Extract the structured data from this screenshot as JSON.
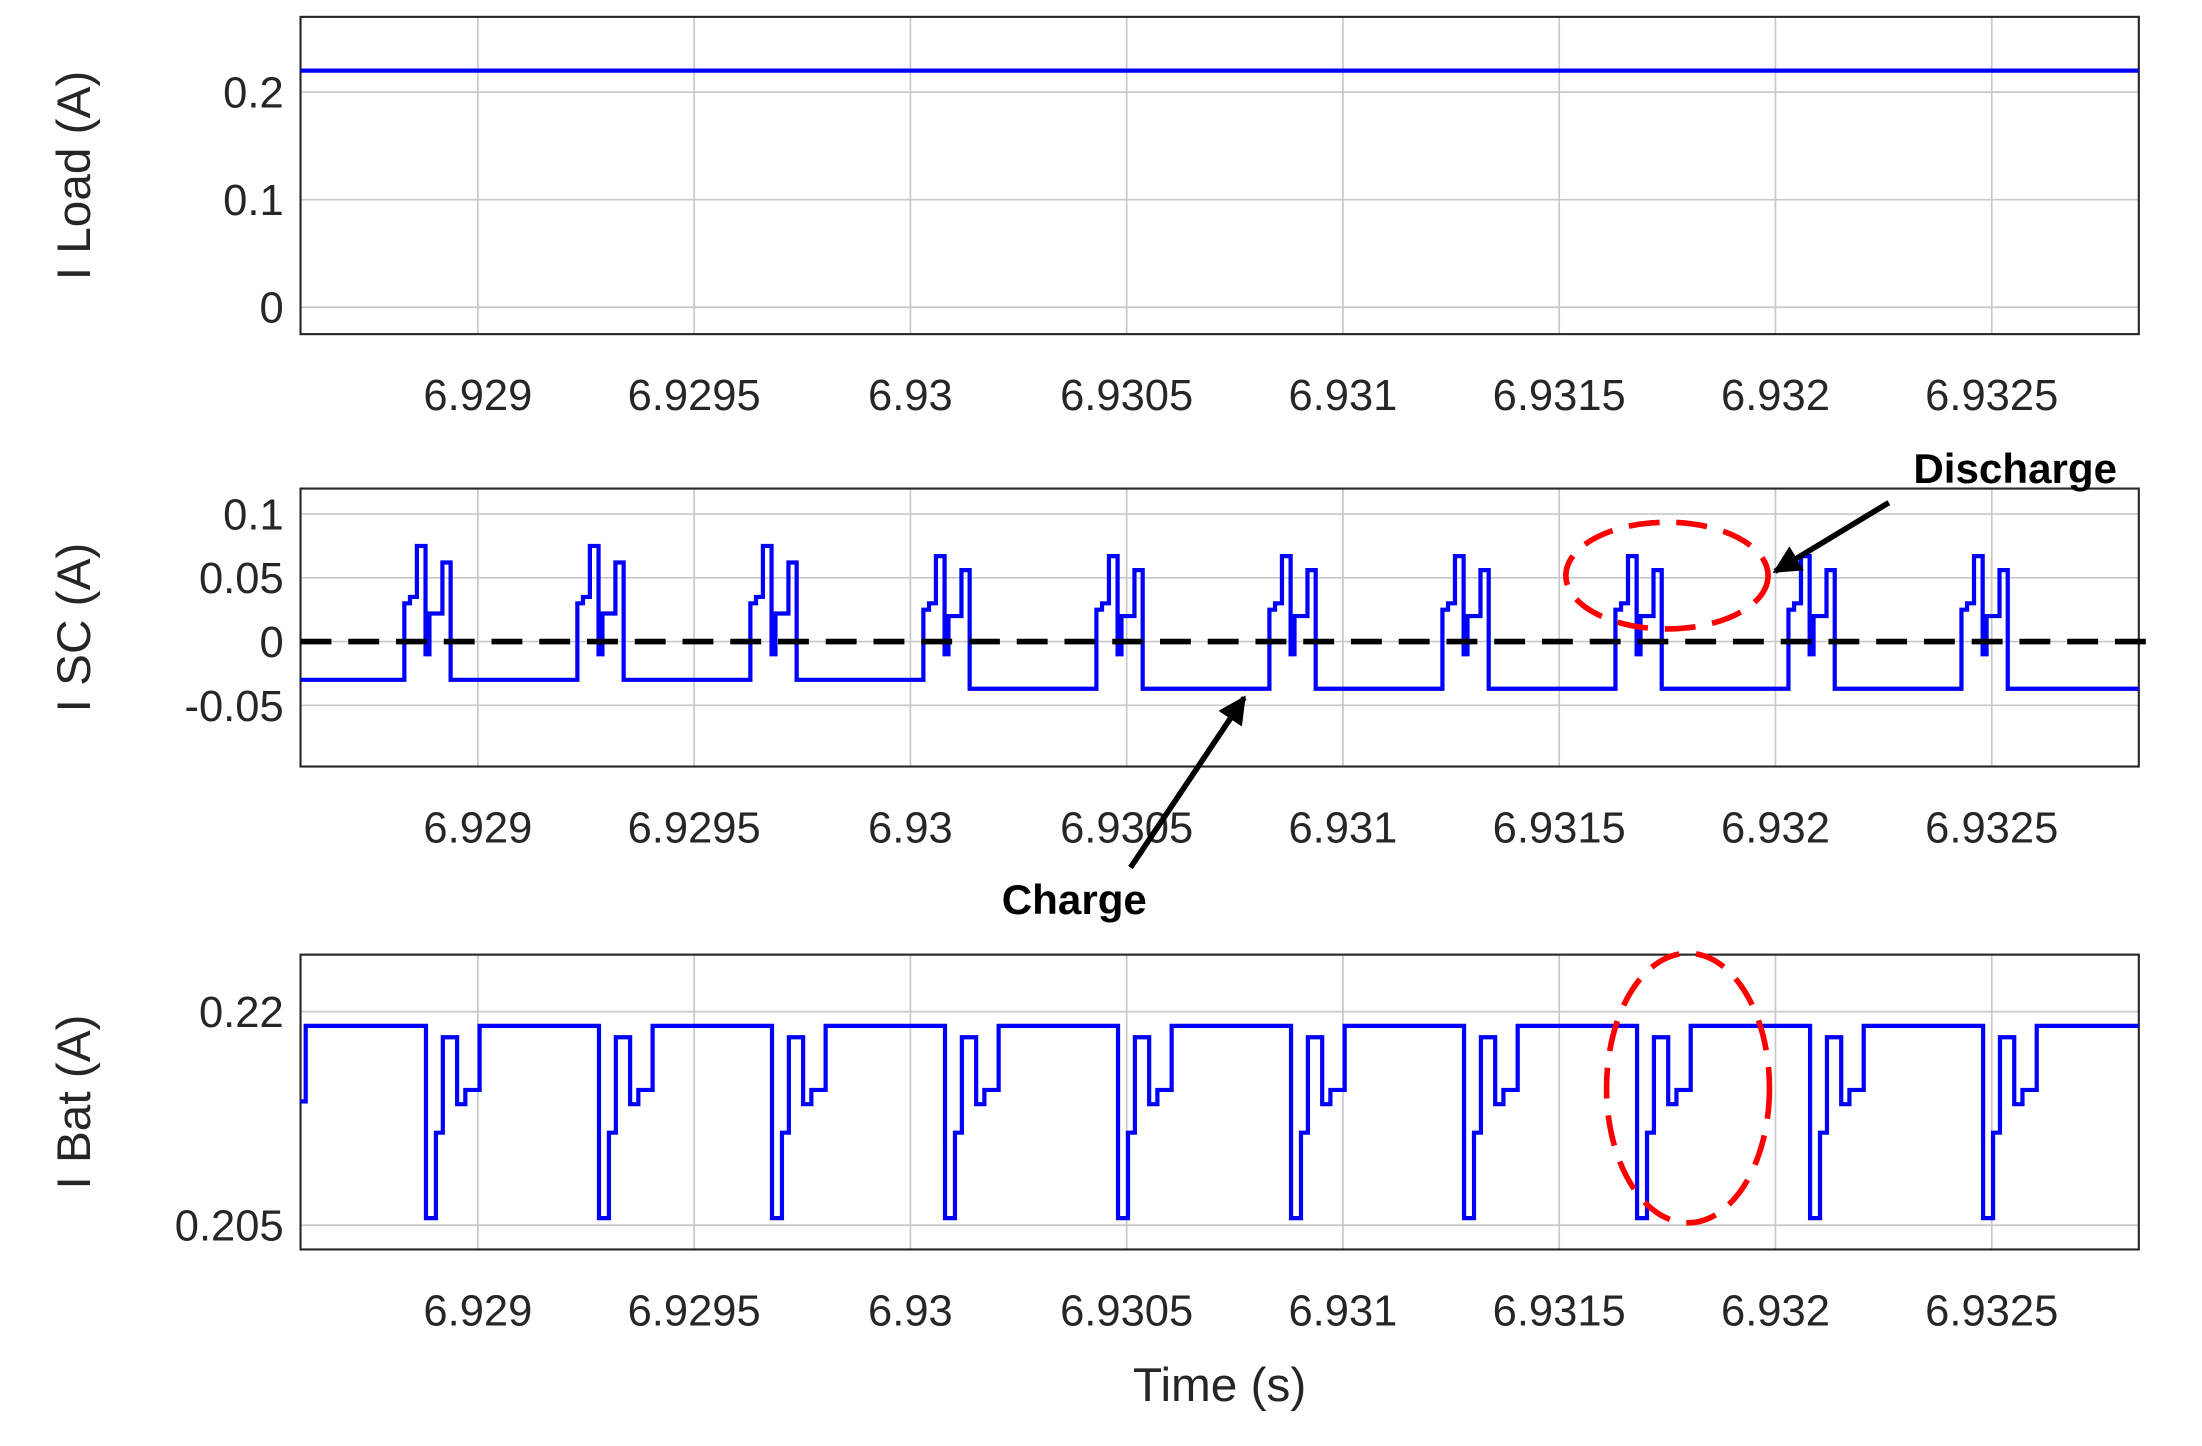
{
  "chart_data": [
    {
      "type": "line",
      "ylabel": "I Load (A)",
      "color": "#0000ff",
      "grid": true,
      "drawstyle": "steps-post",
      "xlim": [
        6.92859,
        6.93284
      ],
      "xticks": [
        6.929,
        6.9295,
        6.93,
        6.9305,
        6.931,
        6.9315,
        6.932,
        6.9325
      ],
      "ylim": [
        -0.025,
        0.27
      ],
      "yticks": [
        0,
        0.1,
        0.2
      ],
      "x": [
        6.92859,
        6.93284
      ],
      "values": [
        0.22,
        0.22
      ]
    },
    {
      "type": "line",
      "ylabel": "I SC (A)",
      "color": "#0000ff",
      "grid": true,
      "drawstyle": "steps-post",
      "xlim": [
        6.92859,
        6.93284
      ],
      "xticks": [
        6.929,
        6.9295,
        6.93,
        6.9305,
        6.931,
        6.9315,
        6.932,
        6.9325
      ],
      "ylim": [
        -0.098,
        0.12
      ],
      "yticks": [
        -0.05,
        0,
        0.05,
        0.1
      ],
      "reference_line": {
        "y": 0,
        "color": "#000000",
        "dashed": true
      },
      "annotations": [
        {
          "text": "Discharge"
        },
        {
          "text": "Charge"
        }
      ],
      "x": [
        6.92859,
        6.92883,
        6.928843,
        6.928859,
        6.928879,
        6.928888,
        6.928918,
        6.928937,
        6.92923,
        6.929243,
        6.929259,
        6.929279,
        6.929288,
        6.929318,
        6.929337,
        6.92963,
        6.929643,
        6.929659,
        6.929679,
        6.929688,
        6.929718,
        6.929737,
        6.93003,
        6.930043,
        6.930059,
        6.930079,
        6.930088,
        6.930118,
        6.930137,
        6.93043,
        6.930443,
        6.930459,
        6.930479,
        6.930488,
        6.930518,
        6.930537,
        6.93083,
        6.930843,
        6.930859,
        6.930879,
        6.930888,
        6.930918,
        6.930937,
        6.93123,
        6.931243,
        6.931259,
        6.931279,
        6.931288,
        6.931318,
        6.931337,
        6.93163,
        6.931643,
        6.931659,
        6.931679,
        6.931688,
        6.931718,
        6.931737,
        6.93203,
        6.932043,
        6.932059,
        6.932079,
        6.932088,
        6.932118,
        6.932137,
        6.93243,
        6.932443,
        6.932459,
        6.932479,
        6.932488,
        6.932518,
        6.932537,
        6.93284
      ],
      "values": [
        -0.03,
        0.03,
        0.035,
        0.075,
        -0.01,
        0.022,
        0.062,
        -0.03,
        0.03,
        0.035,
        0.075,
        -0.01,
        0.022,
        0.062,
        -0.03,
        0.03,
        0.035,
        0.075,
        -0.01,
        0.022,
        0.062,
        -0.03,
        0.025,
        0.03,
        0.067,
        -0.01,
        0.02,
        0.056,
        -0.037,
        0.025,
        0.03,
        0.067,
        -0.01,
        0.02,
        0.056,
        -0.037,
        0.025,
        0.03,
        0.067,
        -0.01,
        0.02,
        0.056,
        -0.037,
        0.025,
        0.03,
        0.067,
        -0.01,
        0.02,
        0.056,
        -0.037,
        0.025,
        0.03,
        0.067,
        -0.01,
        0.02,
        0.056,
        -0.037,
        0.025,
        0.03,
        0.067,
        -0.01,
        0.02,
        0.056,
        -0.037,
        0.025,
        0.03,
        0.067,
        -0.01,
        0.02,
        0.056,
        -0.037,
        -0.037
      ]
    },
    {
      "type": "line",
      "ylabel": "I Bat (A)",
      "xlabel": "Time (s)",
      "color": "#0000ff",
      "grid": true,
      "drawstyle": "steps-post",
      "xlim": [
        6.92859,
        6.93284
      ],
      "xticks": [
        6.929,
        6.9295,
        6.93,
        6.9305,
        6.931,
        6.9315,
        6.932,
        6.9325
      ],
      "ylim": [
        0.2033,
        0.224
      ],
      "yticks": [
        0.205,
        0.22
      ],
      "x": [
        6.92859,
        6.928602,
        6.92888,
        6.928903,
        6.928919,
        6.928952,
        6.928971,
        6.929004,
        6.92928,
        6.929303,
        6.929319,
        6.929352,
        6.929371,
        6.929404,
        6.92968,
        6.929703,
        6.929719,
        6.929752,
        6.929771,
        6.929804,
        6.93008,
        6.930103,
        6.930119,
        6.930152,
        6.930171,
        6.930204,
        6.93048,
        6.930503,
        6.930519,
        6.930552,
        6.930571,
        6.930604,
        6.93088,
        6.930903,
        6.930919,
        6.930952,
        6.930971,
        6.931004,
        6.93128,
        6.931303,
        6.931319,
        6.931352,
        6.931371,
        6.931404,
        6.93168,
        6.931703,
        6.931719,
        6.931752,
        6.931771,
        6.931804,
        6.93208,
        6.932103,
        6.932119,
        6.932152,
        6.932171,
        6.932204,
        6.93248,
        6.932503,
        6.932519,
        6.932552,
        6.932571,
        6.932604,
        6.93284
      ],
      "values": [
        0.2137,
        0.219,
        0.2055,
        0.2115,
        0.2182,
        0.2135,
        0.2145,
        0.219,
        0.2055,
        0.2115,
        0.2182,
        0.2135,
        0.2145,
        0.219,
        0.2055,
        0.2115,
        0.2182,
        0.2135,
        0.2145,
        0.219,
        0.2055,
        0.2115,
        0.2182,
        0.2135,
        0.2145,
        0.219,
        0.2055,
        0.2115,
        0.2182,
        0.2135,
        0.2145,
        0.219,
        0.2055,
        0.2115,
        0.2182,
        0.2135,
        0.2145,
        0.219,
        0.2055,
        0.2115,
        0.2182,
        0.2135,
        0.2145,
        0.219,
        0.2055,
        0.2115,
        0.2182,
        0.2135,
        0.2145,
        0.219,
        0.2055,
        0.2115,
        0.2182,
        0.2135,
        0.2145,
        0.219,
        0.2055,
        0.2115,
        0.2182,
        0.2135,
        0.2145,
        0.219,
        0.219
      ]
    }
  ]
}
